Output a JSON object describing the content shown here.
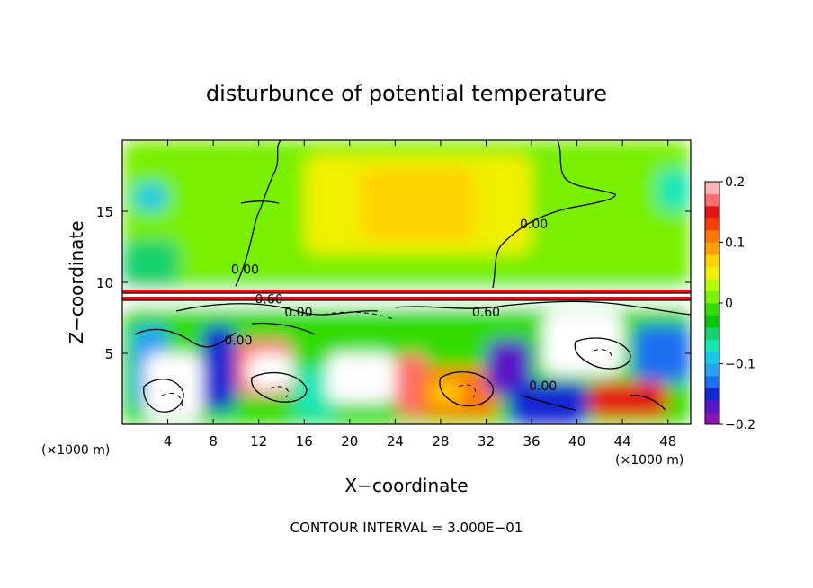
{
  "chart_data": {
    "type": "heatmap",
    "title": "disturbunce of potential temperature",
    "xlabel": "X−coordinate",
    "ylabel": "Z−coordinate",
    "x_unit": "(×1000 m)",
    "z_unit": "(×1000 m)",
    "xlim": [
      0,
      50
    ],
    "ylim": [
      0,
      20
    ],
    "x_ticks": [
      4,
      8,
      12,
      16,
      20,
      24,
      28,
      32,
      36,
      40,
      44,
      48
    ],
    "y_ticks": [
      5,
      10,
      15
    ],
    "footer": "CONTOUR INTERVAL = 3.000E−01",
    "colorbar": {
      "min": -0.2,
      "max": 0.2,
      "ticks": [
        0.2,
        0.1,
        0,
        -0.1,
        -0.2
      ],
      "tick_labels": [
        "0.2",
        "0.1",
        "0",
        "−0.1",
        "−0.2"
      ],
      "colors": [
        "#8a14b4",
        "#5a14c8",
        "#1428d2",
        "#1e6ef0",
        "#28a0f5",
        "#14c8e6",
        "#14e6b4",
        "#14d26e",
        "#00c800",
        "#32dc00",
        "#78f000",
        "#b4ff00",
        "#f0f000",
        "#ffd200",
        "#ffa000",
        "#ff7800",
        "#ff3c00",
        "#e61414",
        "#ff6e6e",
        "#ffb4b4"
      ]
    },
    "contour_labels": [
      {
        "text": "0.00",
        "x": 10.8,
        "z": 10.6
      },
      {
        "text": "0.60",
        "x": 12.9,
        "z": 8.5
      },
      {
        "text": "0.00",
        "x": 15.5,
        "z": 7.6
      },
      {
        "text": "0.00",
        "x": 10.2,
        "z": 5.6
      },
      {
        "text": "0.00",
        "x": 36.2,
        "z": 13.8
      },
      {
        "text": "0.60",
        "x": 32.0,
        "z": 7.6
      },
      {
        "text": "0.00",
        "x": 37.0,
        "z": 2.4
      }
    ],
    "regions": [
      {
        "x0": 0,
        "x1": 50,
        "z0": 9.5,
        "z1": 20,
        "value": 0.01
      },
      {
        "x0": 16,
        "x1": 36,
        "z0": 12,
        "z1": 19,
        "value": 0.05
      },
      {
        "x0": 21,
        "x1": 31,
        "z0": 13,
        "z1": 18,
        "value": 0.07
      },
      {
        "x0": 0,
        "x1": 5,
        "z0": 9.5,
        "z1": 13,
        "value": -0.04
      },
      {
        "x0": 1,
        "x1": 4,
        "z0": 15,
        "z1": 17,
        "value": -0.09
      },
      {
        "x0": 47,
        "x1": 50,
        "z0": 15,
        "z1": 18,
        "value": -0.08
      },
      {
        "x0": 0,
        "x1": 50,
        "z0": 0,
        "z1": 8.2,
        "value": -0.02
      },
      {
        "x0": 1,
        "x1": 4,
        "z0": 1,
        "z1": 7,
        "value": -0.12
      },
      {
        "x0": 2,
        "x1": 7,
        "z0": 0.3,
        "z1": 5,
        "value": 0.25
      },
      {
        "x0": 7,
        "x1": 10,
        "z0": 1,
        "z1": 7,
        "value": -0.15
      },
      {
        "x0": 10,
        "x1": 15,
        "z0": 2,
        "z1": 6,
        "value": 0.16
      },
      {
        "x0": 11,
        "x1": 15,
        "z0": 2.5,
        "z1": 5,
        "value": 0.25
      },
      {
        "x0": 15,
        "x1": 19,
        "z0": 0.5,
        "z1": 4,
        "value": -0.08
      },
      {
        "x0": 18,
        "x1": 24,
        "z0": 1.5,
        "z1": 5,
        "value": 0.25
      },
      {
        "x0": 24,
        "x1": 27,
        "z0": 0.5,
        "z1": 5,
        "value": 0.16
      },
      {
        "x0": 26,
        "x1": 33,
        "z0": 0.5,
        "z1": 4,
        "value": 0.12
      },
      {
        "x0": 27,
        "x1": 30,
        "z0": 1.5,
        "z1": 3,
        "value": 0.06
      },
      {
        "x0": 32,
        "x1": 36,
        "z0": 2,
        "z1": 6,
        "value": -0.18
      },
      {
        "x0": 34,
        "x1": 41,
        "z0": 0,
        "z1": 3,
        "value": -0.15
      },
      {
        "x0": 37,
        "x1": 44,
        "z0": 3.5,
        "z1": 8,
        "value": 0.25
      },
      {
        "x0": 41,
        "x1": 48,
        "z0": 0.5,
        "z1": 3,
        "value": 0.15
      },
      {
        "x0": 45,
        "x1": 50,
        "z0": 3,
        "z1": 7,
        "value": -0.14
      },
      {
        "x0": 0,
        "x1": 50,
        "z0": 8.2,
        "z1": 9.5,
        "value": 0.25
      }
    ]
  }
}
